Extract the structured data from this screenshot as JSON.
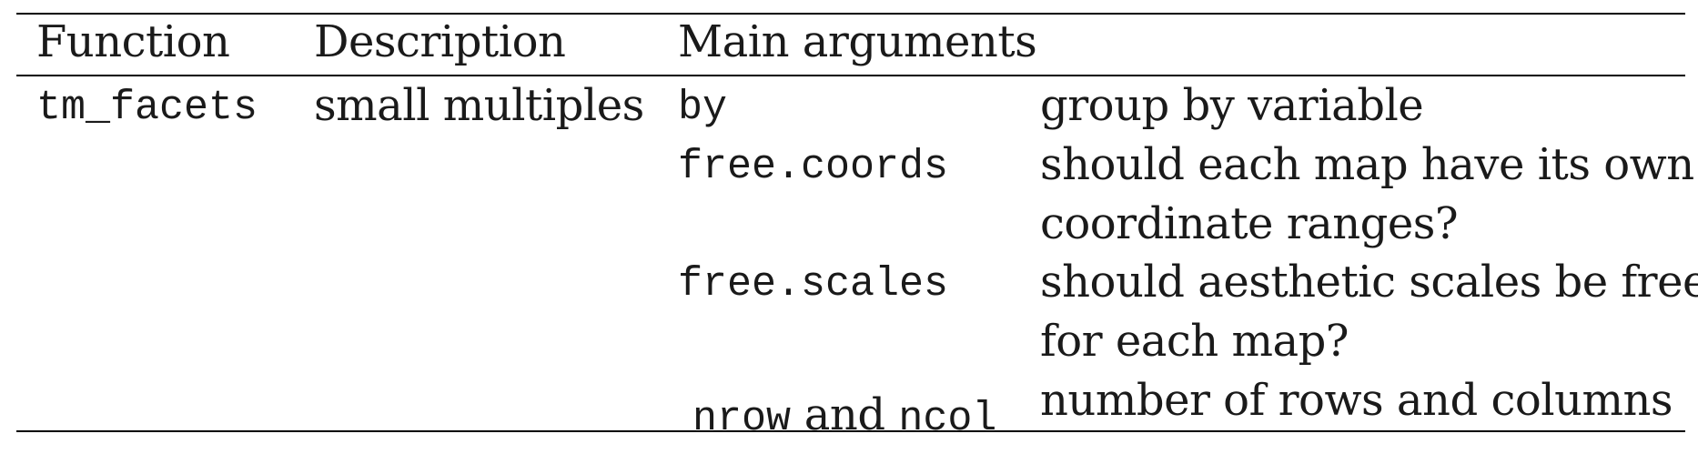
{
  "table": {
    "headers": {
      "function": "Function",
      "description": "Description",
      "main_arguments": "Main arguments"
    },
    "row": {
      "function": "tm_facets",
      "description": "small multiples",
      "arguments": [
        {
          "arg": "by",
          "explanation_lines": [
            "group by variable"
          ]
        },
        {
          "arg": "free.coords",
          "explanation_lines": [
            "should each map have its own",
            "coordinate ranges?"
          ]
        },
        {
          "arg": "free.scales",
          "explanation_lines": [
            "should aesthetic scales be free",
            "for each map?"
          ]
        },
        {
          "arg_parts": [
            "nrow",
            " and ",
            "ncol"
          ],
          "explanation_lines": [
            "number of rows and columns"
          ]
        }
      ]
    }
  }
}
